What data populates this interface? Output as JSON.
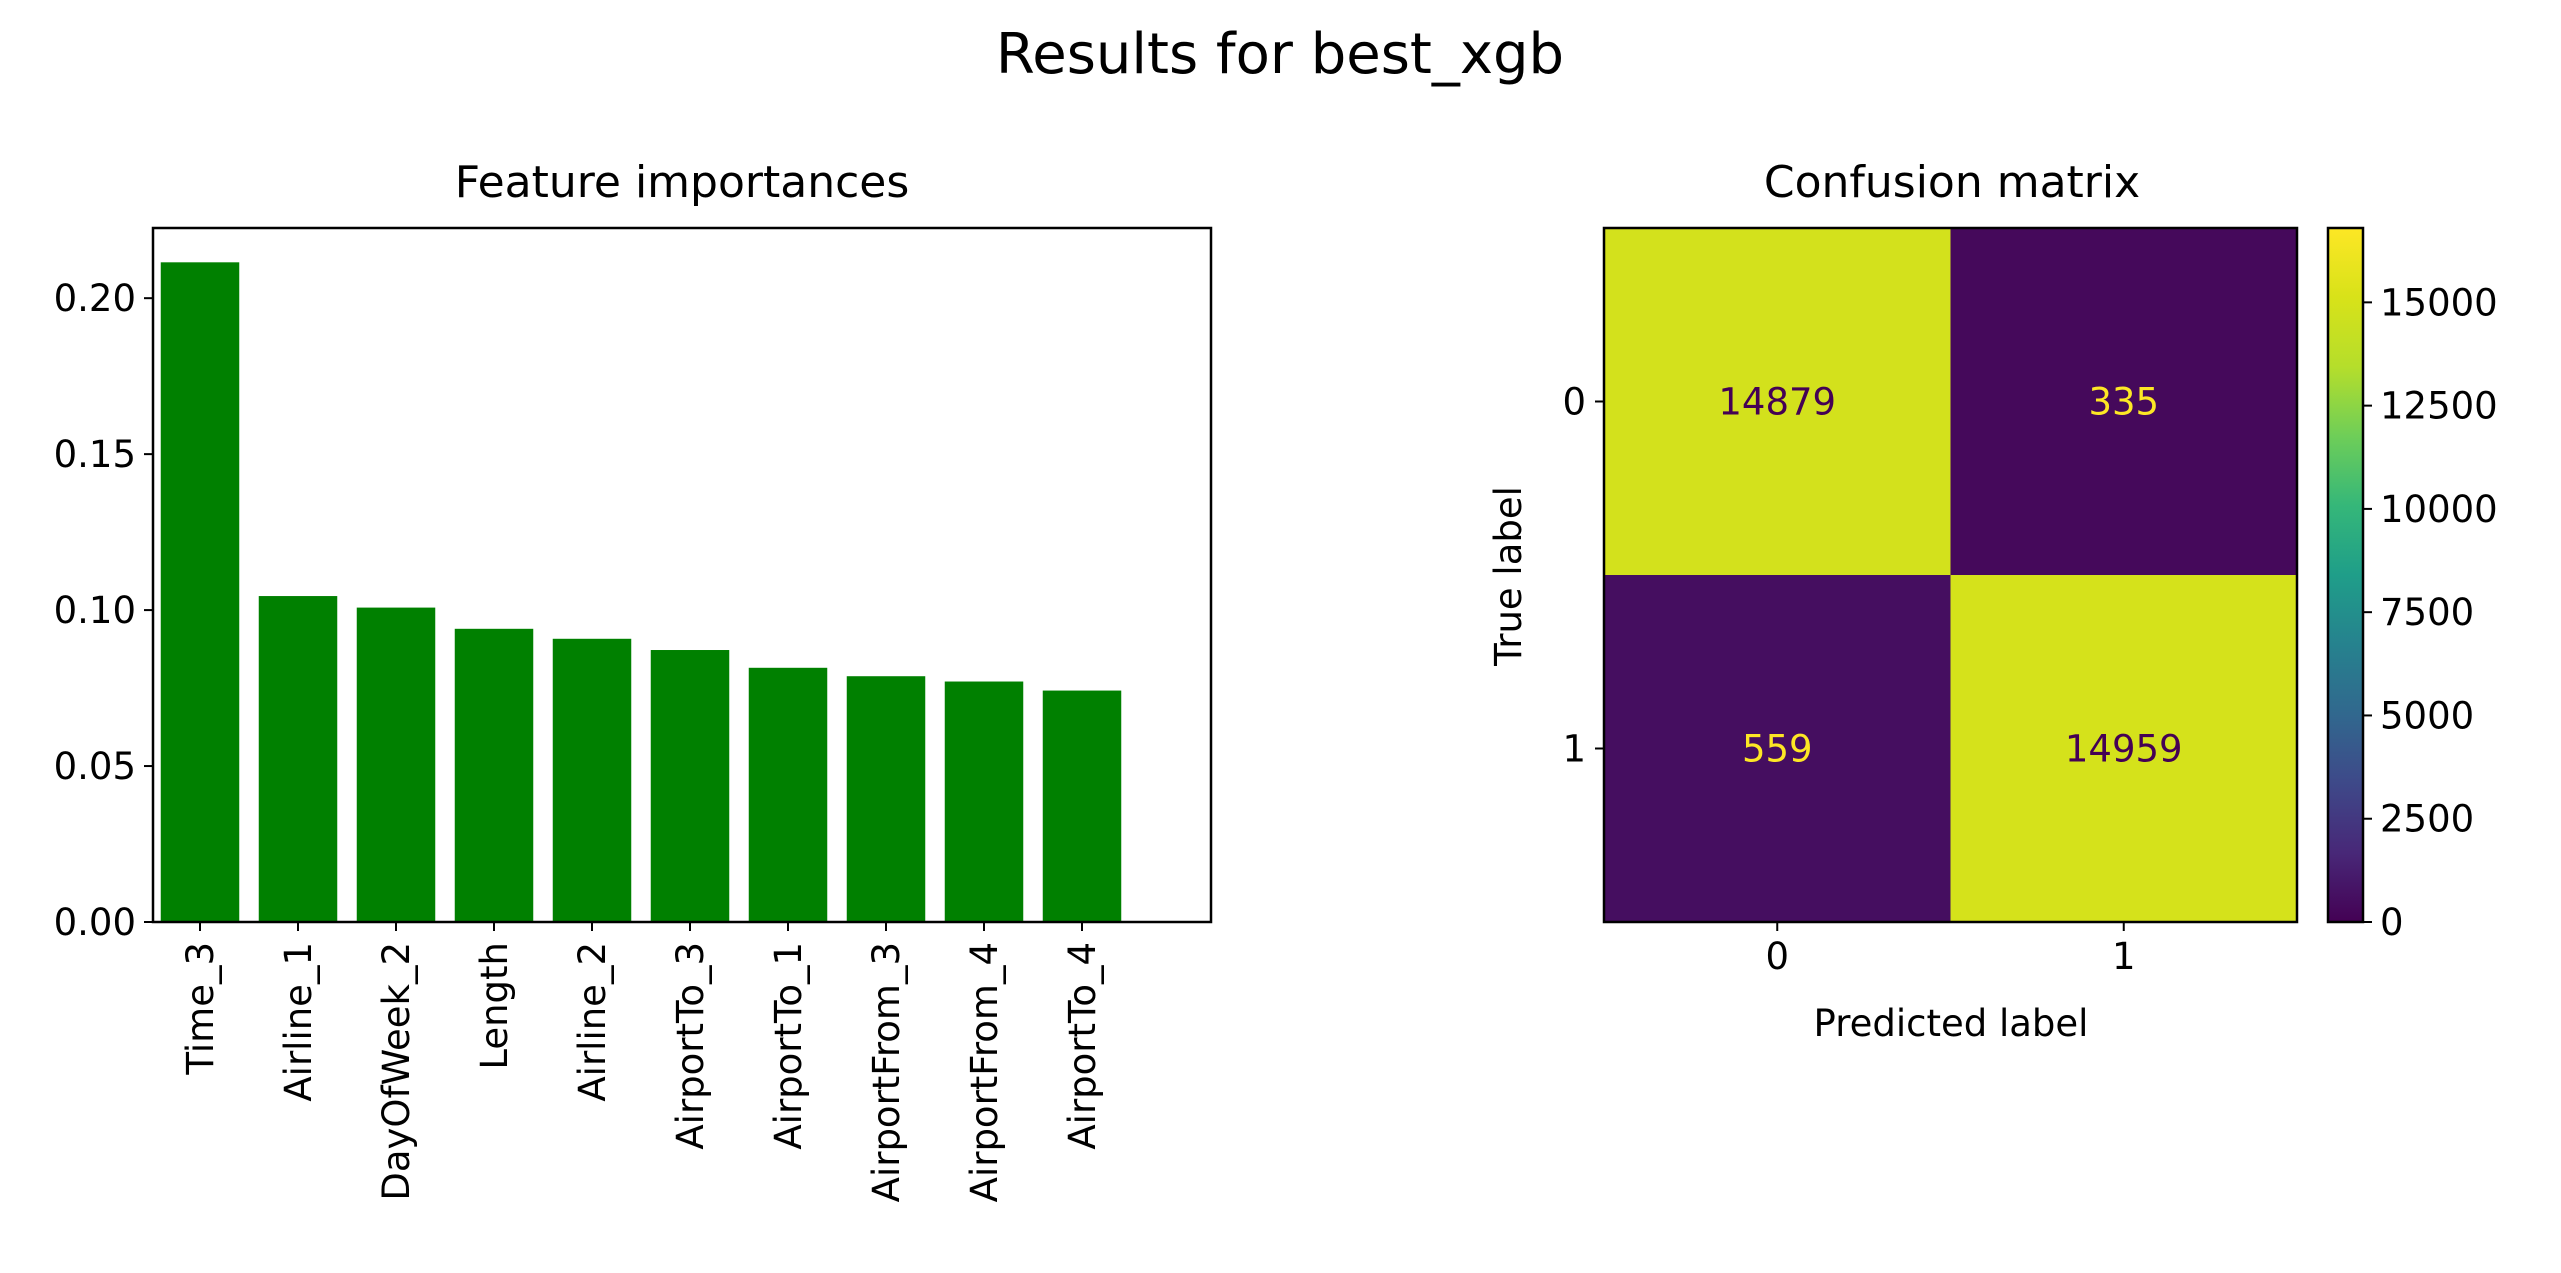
{
  "figure": {
    "suptitle": "Results for best_xgb"
  },
  "chart_data": [
    {
      "type": "bar",
      "title": "Feature importances",
      "xlabel": "",
      "ylabel": "",
      "categories": [
        "Time_3",
        "Airline_1",
        "DayOfWeek_2",
        "Length",
        "Airline_2",
        "AirportTo_3",
        "AirportTo_1",
        "AirportFrom_3",
        "AirportFrom_4",
        "AirportTo_4"
      ],
      "values": [
        0.2115,
        0.1045,
        0.1008,
        0.094,
        0.0908,
        0.0872,
        0.0815,
        0.0788,
        0.0771,
        0.0742
      ],
      "ylim": [
        0,
        0.2225
      ],
      "yticks": [
        "0.00",
        "0.05",
        "0.10",
        "0.15",
        "0.20"
      ],
      "ytick_values": [
        0,
        0.05,
        0.1,
        0.15,
        0.2
      ],
      "bar_color": "#008000",
      "grid": false
    },
    {
      "type": "heatmap",
      "title": "Confusion matrix",
      "xlabel": "Predicted label",
      "ylabel": "True label",
      "x_categories": [
        "0",
        "1"
      ],
      "y_categories": [
        "0",
        "1"
      ],
      "matrix": [
        [
          14879,
          335
        ],
        [
          559,
          14959
        ]
      ],
      "colormap": "viridis",
      "colorbar": {
        "min": 0,
        "max": 16800,
        "ticks": [
          0,
          2500,
          5000,
          7500,
          10000,
          12500,
          15000
        ]
      },
      "text_colors": {
        "high": "#440154",
        "low": "#fde725"
      },
      "grid": false
    }
  ]
}
